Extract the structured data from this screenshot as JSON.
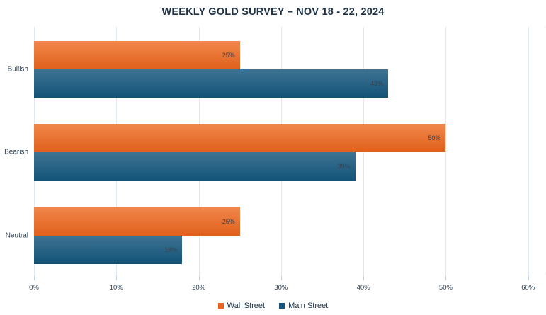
{
  "title": "WEEKLY GOLD SURVEY – NOV 18 - 22, 2024",
  "colors": {
    "title_text": "#1F3245",
    "axis_text": "#2E4255",
    "bar_label_text": "#3A434E",
    "gridline": "#DDE9F4",
    "tick": "#C2D4E2",
    "wall_street_gradient_top": "#F1874C",
    "wall_street_gradient_bottom": "#E0601B",
    "main_street_gradient_top": "#3E7393",
    "main_street_gradient_bottom": "#125377"
  },
  "chart_data": {
    "type": "bar",
    "orientation": "horizontal",
    "title": "WEEKLY GOLD SURVEY – NOV 18 - 22, 2024",
    "categories": [
      "Bullish",
      "Bearish",
      "Neutral"
    ],
    "series": [
      {
        "name": "Wall Street",
        "color": "#E8661F",
        "values": [
          25,
          50,
          25
        ]
      },
      {
        "name": "Main Street",
        "color": "#17567D",
        "values": [
          43,
          39,
          18
        ]
      }
    ],
    "value_labels": [
      [
        "25%",
        "50%",
        "25%"
      ],
      [
        "43%",
        "39%",
        "18%"
      ]
    ],
    "value_suffix": "%",
    "xlabel": "",
    "ylabel": "",
    "x_ticks": [
      "0%",
      "10%",
      "20%",
      "30%",
      "40%",
      "50%",
      "60%"
    ],
    "x_tick_values": [
      0,
      10,
      20,
      30,
      40,
      50,
      60
    ],
    "xlim": [
      0,
      62
    ],
    "grid": true,
    "legend_position": "bottom"
  }
}
